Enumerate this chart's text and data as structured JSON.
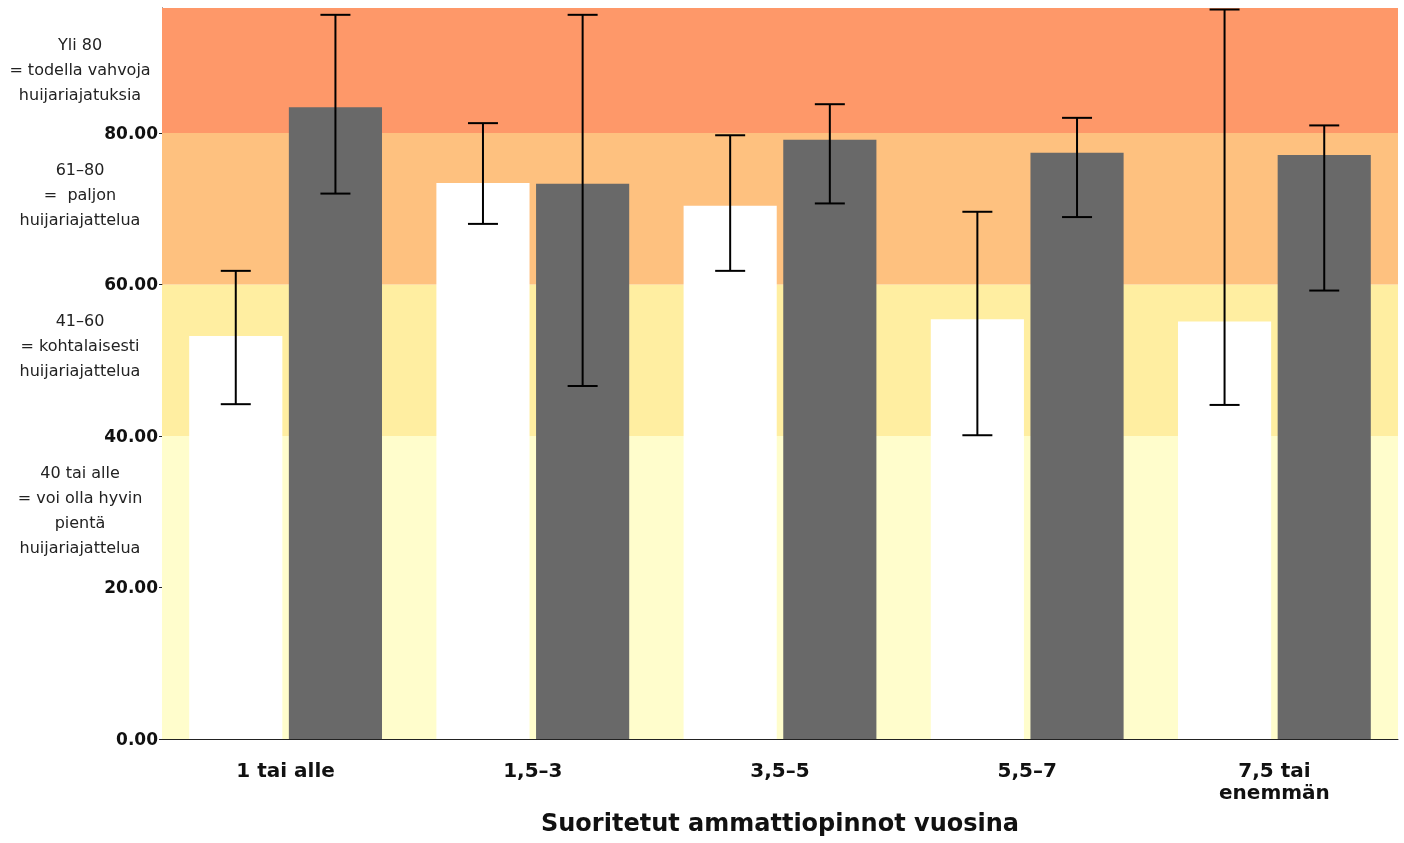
{
  "chart_data": {
    "type": "bar",
    "xlabel": "Suoritetut ammattiopinnot vuosina",
    "categories": [
      "1 tai alle",
      "1,5–3",
      "3,5–5",
      "5,5–7",
      "7,5 tai\nenemmän"
    ],
    "series": [
      {
        "color": "#ffffff",
        "values": [
          53.2,
          73.4,
          70.4,
          55.4,
          55.1
        ],
        "errors": [
          [
            44.2,
            61.8
          ],
          [
            68,
            81.3
          ],
          [
            61.8,
            79.7
          ],
          [
            40.1,
            69.6
          ],
          [
            44.1,
            96.3
          ]
        ]
      },
      {
        "color": "#696969",
        "values": [
          83.4,
          73.3,
          79.1,
          77.4,
          77.1
        ],
        "errors": [
          [
            72,
            95.6
          ],
          [
            46.6,
            95.6
          ],
          [
            70.7,
            83.8
          ],
          [
            68.9,
            82
          ],
          [
            59.2,
            81
          ]
        ]
      }
    ],
    "ylim": [
      0,
      96.5
    ],
    "yticks": [
      {
        "value": 0,
        "label": "0.00"
      },
      {
        "value": 20,
        "label": "20.00"
      },
      {
        "value": 40,
        "label": "40.00"
      },
      {
        "value": 60,
        "label": "60.00"
      },
      {
        "value": 80,
        "label": "80.00"
      }
    ],
    "grid": false,
    "bands": [
      {
        "axis": "y",
        "from": 0,
        "to": 40,
        "label": "40 tai alle\n= voi olla hyvin\npientä\nhuijariajattelua",
        "color": "#fffdcc"
      },
      {
        "axis": "y",
        "from": 40,
        "to": 60,
        "label": "41–60\n= kohtalaisesti\nhuijariajattelua",
        "color": "#ffeea1"
      },
      {
        "axis": "y",
        "from": 60,
        "to": 80,
        "label": "61–80\n=  paljon\nhuijariajattelua",
        "color": "#fec17f"
      },
      {
        "axis": "y",
        "from": 80,
        "to": 96.5,
        "label": "Yli 80\n= todella vahvoja\nhuijariajatuksia",
        "color": "#fe9869"
      }
    ]
  }
}
